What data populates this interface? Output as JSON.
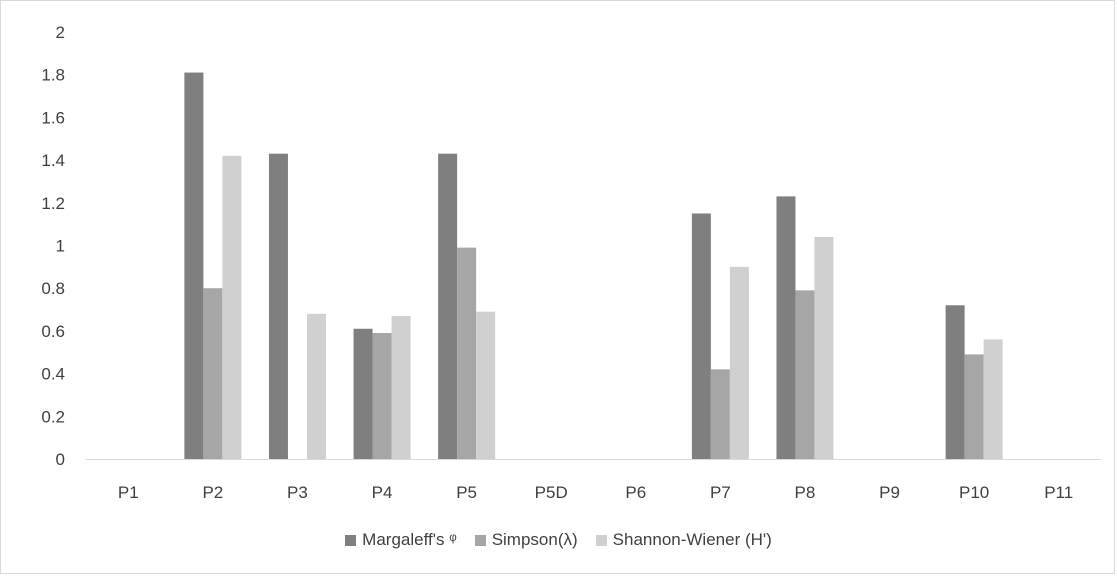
{
  "chart_data": {
    "type": "bar",
    "title": "",
    "xlabel": "",
    "ylabel": "",
    "categories": [
      "P1",
      "P2",
      "P3",
      "P4",
      "P5",
      "P5D",
      "P6",
      "P7",
      "P8",
      "P9",
      "P10",
      "P11"
    ],
    "series": [
      {
        "name": "Margaleff's ᵠ",
        "color": "#7f7f7f",
        "values": [
          0,
          1.81,
          1.43,
          0.61,
          1.43,
          0,
          0,
          1.15,
          1.23,
          0,
          0.72,
          0
        ]
      },
      {
        "name": "Simpson(λ)",
        "color": "#a6a6a6",
        "values": [
          0,
          0.8,
          0,
          0.59,
          0.99,
          0,
          0,
          0.42,
          0.79,
          0,
          0.49,
          0
        ]
      },
      {
        "name": "Shannon-Wiener (H')",
        "color": "#d0d0d0",
        "values": [
          0,
          1.42,
          0.68,
          0.67,
          0.69,
          0,
          0,
          0.9,
          1.04,
          0,
          0.56,
          0
        ]
      }
    ],
    "ylim": [
      0,
      2
    ],
    "yticks": [
      "0",
      "0.2",
      "0.4",
      "0.6",
      "0.8",
      "1",
      "1.2",
      "1.4",
      "1.6",
      "1.8",
      "2"
    ],
    "grid": false,
    "legend_position": "bottom"
  }
}
